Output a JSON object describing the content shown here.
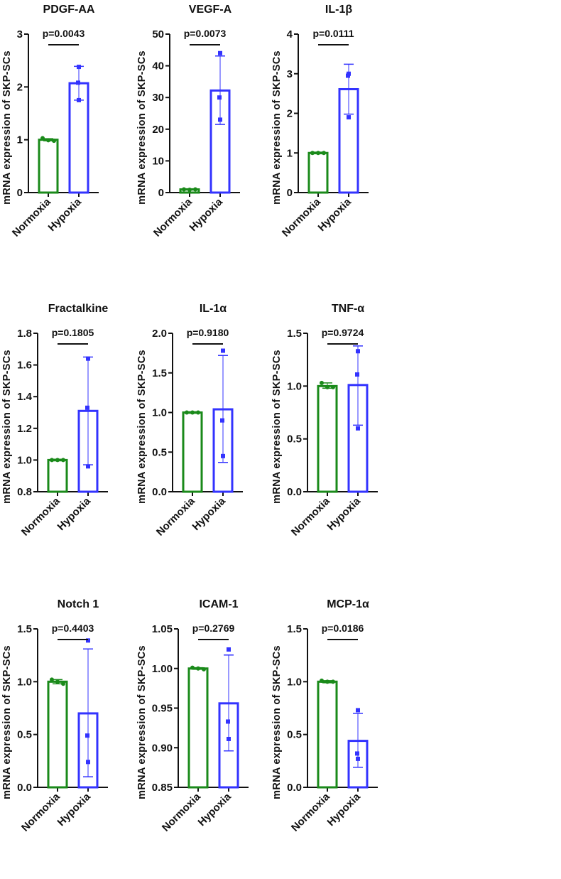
{
  "colors": {
    "normoxia": "#1a8a1a",
    "hypoxia": "#3333ff",
    "axis": "#111111"
  },
  "chart_data": [
    {
      "type": "bar",
      "title": "PDGF-AA",
      "ylabel": "mRNA expression of SKP-SCs",
      "categories": [
        "Normoxia",
        "Hypoxia"
      ],
      "ylim": [
        0,
        3
      ],
      "yticks": [
        0,
        1,
        2,
        3
      ],
      "ytick_labels": [
        "0",
        "1",
        "2",
        "3"
      ],
      "p_value": "p=0.0043",
      "series": [
        {
          "name": "Normoxia",
          "mean": 1.0,
          "err": [
            0.98,
            1.02
          ],
          "points": [
            1.03,
            0.99,
            0.98
          ]
        },
        {
          "name": "Hypoxia",
          "mean": 2.07,
          "err": [
            1.75,
            2.39
          ],
          "points": [
            2.38,
            2.08,
            1.75
          ]
        }
      ]
    },
    {
      "type": "bar",
      "title": "VEGF-A",
      "ylabel": "mRNA expression of SKP-SCs",
      "categories": [
        "Normoxia",
        "Hypoxia"
      ],
      "ylim": [
        0,
        50
      ],
      "yticks": [
        0,
        10,
        20,
        30,
        40,
        50
      ],
      "ytick_labels": [
        "0",
        "10",
        "20",
        "30",
        "40",
        "50"
      ],
      "p_value": "p=0.0073",
      "series": [
        {
          "name": "Normoxia",
          "mean": 1.0,
          "err": [
            0.8,
            1.2
          ],
          "points": [
            1.0,
            0.9,
            1.0
          ]
        },
        {
          "name": "Hypoxia",
          "mean": 32.2,
          "err": [
            21.5,
            43.1
          ],
          "points": [
            44,
            30,
            23
          ]
        }
      ]
    },
    {
      "type": "bar",
      "title": "IL-1β",
      "ylabel": "mRNA expression of SKP-SCs",
      "categories": [
        "Normoxia",
        "Hypoxia"
      ],
      "ylim": [
        0,
        4
      ],
      "yticks": [
        0,
        1,
        2,
        3,
        4
      ],
      "ytick_labels": [
        "0",
        "1",
        "2",
        "3",
        "4"
      ],
      "p_value": "p=0.0111",
      "series": [
        {
          "name": "Normoxia",
          "mean": 1.0,
          "err": [
            0.98,
            1.02
          ],
          "points": [
            1.0,
            1.0,
            1.0
          ]
        },
        {
          "name": "Hypoxia",
          "mean": 2.61,
          "err": [
            1.98,
            3.24
          ],
          "points": [
            3.0,
            2.95,
            1.9
          ]
        }
      ]
    },
    {
      "type": "bar",
      "title": "Fractalkine",
      "ylabel": "mRNA expression of SKP-SCs",
      "categories": [
        "Normoxia",
        "Hypoxia"
      ],
      "ylim": [
        0.8,
        1.8
      ],
      "yticks": [
        0.8,
        1.0,
        1.2,
        1.4,
        1.6,
        1.8
      ],
      "ytick_labels": [
        "0.8",
        "1.0",
        "1.2",
        "1.4",
        "1.6",
        "1.8"
      ],
      "p_value": "p=0.1805",
      "series": [
        {
          "name": "Normoxia",
          "mean": 1.0,
          "err": [
            0.995,
            1.005
          ],
          "points": [
            1.0,
            1.0,
            1.0
          ]
        },
        {
          "name": "Hypoxia",
          "mean": 1.31,
          "err": [
            0.97,
            1.65
          ],
          "points": [
            1.64,
            1.33,
            0.96
          ]
        }
      ]
    },
    {
      "type": "bar",
      "title": "IL-1α",
      "ylabel": "mRNA expression of SKP-SCs",
      "categories": [
        "Normoxia",
        "Hypoxia"
      ],
      "ylim": [
        0,
        2
      ],
      "yticks": [
        0,
        0.5,
        1.0,
        1.5,
        2.0
      ],
      "ytick_labels": [
        "0.0",
        "0.5",
        "1.0",
        "1.5",
        "2.0"
      ],
      "p_value": "p=0.9180",
      "series": [
        {
          "name": "Normoxia",
          "mean": 1.0,
          "err": [
            0.99,
            1.01
          ],
          "points": [
            1.0,
            1.0,
            1.0
          ]
        },
        {
          "name": "Hypoxia",
          "mean": 1.04,
          "err": [
            0.37,
            1.72
          ],
          "points": [
            1.78,
            0.9,
            0.45
          ]
        }
      ]
    },
    {
      "type": "bar",
      "title": "TNF-α",
      "ylabel": "mRNA expression of SKP-SCs",
      "categories": [
        "Normoxia",
        "Hypoxia"
      ],
      "ylim": [
        0,
        1.5
      ],
      "yticks": [
        0,
        0.5,
        1.0,
        1.5
      ],
      "ytick_labels": [
        "0.0",
        "0.5",
        "1.0",
        "1.5"
      ],
      "p_value": "p=0.9724",
      "series": [
        {
          "name": "Normoxia",
          "mean": 1.0,
          "err": [
            0.98,
            1.03
          ],
          "points": [
            1.03,
            0.99,
            0.99
          ]
        },
        {
          "name": "Hypoxia",
          "mean": 1.01,
          "err": [
            0.63,
            1.38
          ],
          "points": [
            1.33,
            1.11,
            0.6
          ]
        }
      ]
    },
    {
      "type": "bar",
      "title": "Notch 1",
      "ylabel": "mRNA expression of SKP-SCs",
      "categories": [
        "Normoxia",
        "Hypoxia"
      ],
      "ylim": [
        0,
        1.5
      ],
      "yticks": [
        0,
        0.5,
        1.0,
        1.5
      ],
      "ytick_labels": [
        "0.0",
        "0.5",
        "1.0",
        "1.5"
      ],
      "p_value": "p=0.4403",
      "series": [
        {
          "name": "Normoxia",
          "mean": 1.0,
          "err": [
            0.98,
            1.02
          ],
          "points": [
            1.02,
            1.0,
            0.98
          ]
        },
        {
          "name": "Hypoxia",
          "mean": 0.7,
          "err": [
            0.1,
            1.31
          ],
          "points": [
            1.39,
            0.49,
            0.24
          ]
        }
      ]
    },
    {
      "type": "bar",
      "title": "ICAM-1",
      "ylabel": "mRNA expression of SKP-SCs",
      "categories": [
        "Normoxia",
        "Hypoxia"
      ],
      "ylim": [
        0.85,
        1.05
      ],
      "yticks": [
        0.85,
        0.9,
        0.95,
        1.0,
        1.05
      ],
      "ytick_labels": [
        "0.85",
        "0.90",
        "0.95",
        "1.00",
        "1.05"
      ],
      "p_value": "p=0.2769",
      "series": [
        {
          "name": "Normoxia",
          "mean": 1.0,
          "err": [
            0.999,
            1.001
          ],
          "points": [
            1.001,
            1.0,
            0.999
          ]
        },
        {
          "name": "Hypoxia",
          "mean": 0.956,
          "err": [
            0.896,
            1.017
          ],
          "points": [
            1.024,
            0.933,
            0.911
          ]
        }
      ]
    },
    {
      "type": "bar",
      "title": "MCP-1α",
      "ylabel": "mRNA expression of SKP-SCs",
      "categories": [
        "Normoxia",
        "Hypoxia"
      ],
      "ylim": [
        0,
        1.5
      ],
      "yticks": [
        0,
        0.5,
        1.0,
        1.5
      ],
      "ytick_labels": [
        "0.0",
        "0.5",
        "1.0",
        "1.5"
      ],
      "p_value": "p=0.0186",
      "series": [
        {
          "name": "Normoxia",
          "mean": 1.0,
          "err": [
            0.99,
            1.01
          ],
          "points": [
            1.01,
            1.0,
            1.0
          ]
        },
        {
          "name": "Hypoxia",
          "mean": 0.44,
          "err": [
            0.19,
            0.7
          ],
          "points": [
            0.73,
            0.32,
            0.27
          ]
        }
      ]
    }
  ]
}
